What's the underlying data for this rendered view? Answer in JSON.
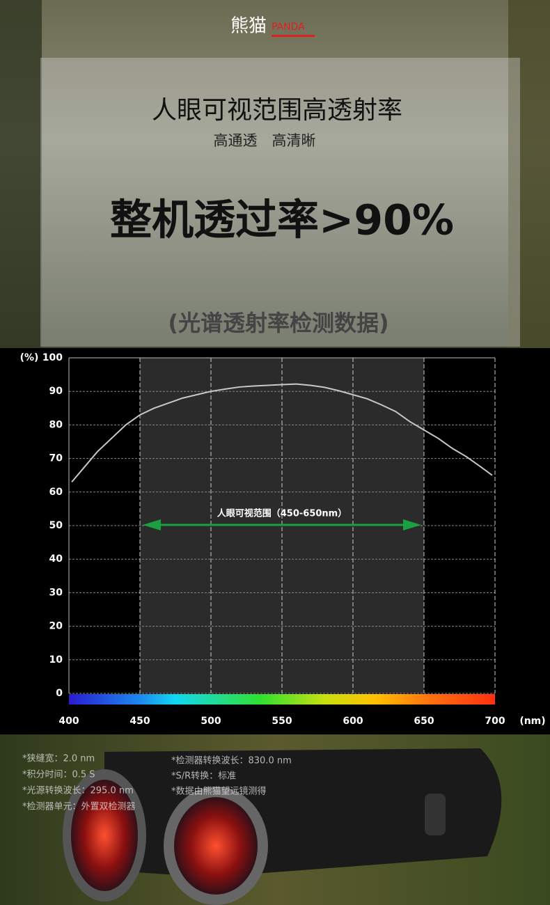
{
  "brand": {
    "name": "熊猫",
    "tag": "PANDA"
  },
  "headline": {
    "title": "人眼可视范围高透射率",
    "subtitle": "高通透　高清晰",
    "claim": "整机透过率>90%",
    "caption": "(光谱透射率检测数据)"
  },
  "chart_data": {
    "type": "line",
    "y_label": "(%)",
    "x_label": "(nm)",
    "annotation": "人眼可视范围（450-650nm）",
    "band": [
      450,
      650
    ],
    "x": [
      402,
      410,
      420,
      430,
      440,
      450,
      460,
      470,
      480,
      490,
      500,
      510,
      520,
      530,
      540,
      550,
      560,
      570,
      580,
      590,
      600,
      610,
      620,
      630,
      640,
      650,
      660,
      670,
      680,
      690,
      698
    ],
    "series": [
      {
        "color": "#c8c8c8",
        "values": [
          63,
          67,
          72,
          76,
          80,
          83,
          85,
          86.5,
          88,
          89,
          90,
          90.7,
          91.3,
          91.6,
          91.8,
          92,
          92.2,
          91.8,
          91.2,
          90.2,
          89,
          87.8,
          86,
          84,
          81,
          78.5,
          76,
          73,
          70.5,
          67.5,
          65
        ]
      }
    ],
    "xlim": [
      400,
      700
    ],
    "xticks": [
      400,
      450,
      500,
      550,
      600,
      650,
      700
    ],
    "ylim": [
      0,
      100
    ],
    "yticks": [
      0,
      10,
      20,
      30,
      40,
      50,
      60,
      70,
      80,
      90,
      100
    ],
    "grid": true
  },
  "notes": {
    "left": [
      "*狭缝宽：2.0 nm",
      "*积分时间：0.5 S",
      "*光源转换波长：295.0 nm",
      "*检测器单元：外置双检测器"
    ],
    "right": [
      "*检测器转换波长：830.0 nm",
      "*S/R转换：标准",
      "*数据由熊猫望远镜测得"
    ]
  }
}
